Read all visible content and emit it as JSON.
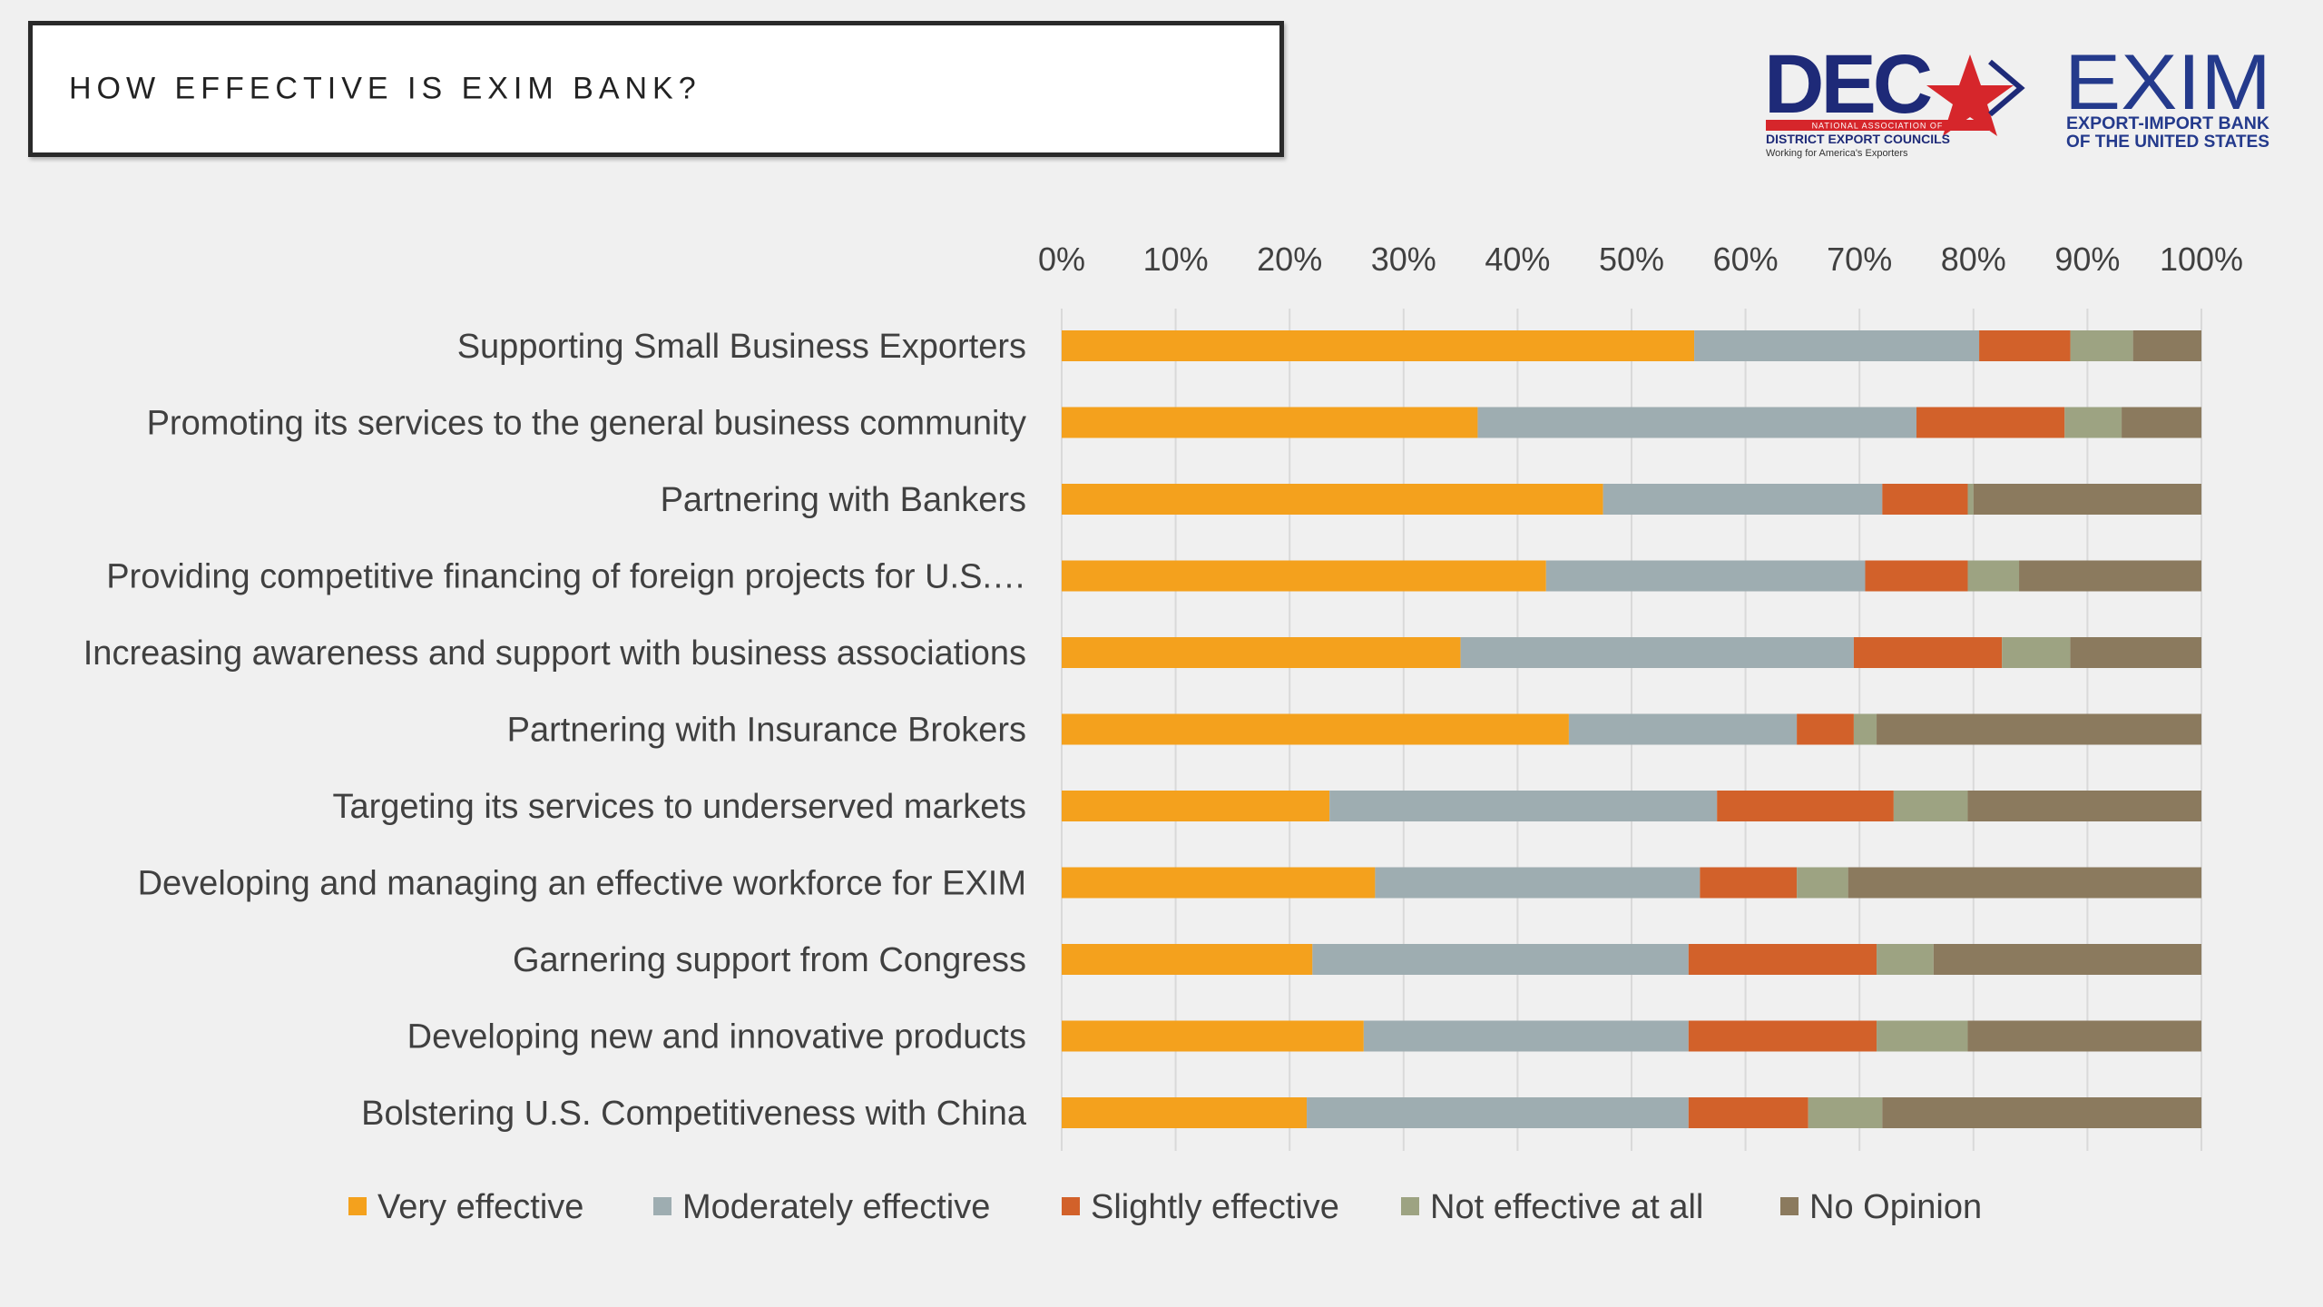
{
  "header": {
    "title": "HOW EFFECTIVE IS EXIM BANK?"
  },
  "logos": {
    "dec": {
      "name": "DEC",
      "line1": "NATIONAL ASSOCIATION OF",
      "line2": "DISTRICT EXPORT COUNCILS",
      "line3": "Working for America's Exporters"
    },
    "exim": {
      "name": "EXIM",
      "line1": "EXPORT-IMPORT BANK",
      "line2": "OF THE UNITED STATES"
    }
  },
  "colors": {
    "background": "#f0f0f0",
    "very_effective": "#f4a11d",
    "moderately_effective": "#9eadb1",
    "slightly_effective": "#d2612a",
    "not_effective": "#9da382",
    "no_opinion": "#8b7a5e",
    "dec_blue": "#1e2a78",
    "dec_red": "#d6262b",
    "exim_blue": "#243a8c"
  },
  "chart_data": {
    "type": "bar",
    "orientation": "horizontal",
    "stacked": true,
    "title": "",
    "xlabel": "",
    "ylabel": "",
    "xlim": [
      0,
      100
    ],
    "x_ticks": [
      "0%",
      "10%",
      "20%",
      "30%",
      "40%",
      "50%",
      "60%",
      "70%",
      "80%",
      "90%",
      "100%"
    ],
    "grid": true,
    "legend_position": "bottom",
    "categories": [
      "Supporting Small Business Exporters",
      "Promoting its services to the general business community",
      "Partnering with Bankers",
      "Providing competitive financing of foreign projects for U.S.…",
      "Increasing awareness and support with business associations",
      "Partnering with Insurance Brokers",
      "Targeting its services to underserved markets",
      "Developing and managing an effective workforce for EXIM",
      "Garnering support from Congress",
      "Developing new and innovative products",
      "Bolstering U.S. Competitiveness with China"
    ],
    "series": [
      {
        "name": "Very effective",
        "values": [
          55.5,
          36.5,
          47.5,
          42.5,
          35,
          44.5,
          23.5,
          27.5,
          22,
          26.5,
          21.5
        ]
      },
      {
        "name": "Moderately effective",
        "values": [
          25,
          38.5,
          24.5,
          28,
          34.5,
          20,
          34,
          28.5,
          33,
          28.5,
          33.5
        ]
      },
      {
        "name": "Slightly effective",
        "values": [
          8,
          13,
          7.5,
          9,
          13,
          5,
          15.5,
          8.5,
          16.5,
          16.5,
          10.5
        ]
      },
      {
        "name": "Not effective at all",
        "values": [
          5.5,
          5,
          0.5,
          4.5,
          6,
          2,
          6.5,
          4.5,
          5,
          8,
          6.5
        ]
      },
      {
        "name": "No Opinion",
        "values": [
          6,
          7,
          20,
          16,
          11.5,
          28.5,
          20.5,
          31,
          23.5,
          20.5,
          28
        ]
      }
    ]
  }
}
